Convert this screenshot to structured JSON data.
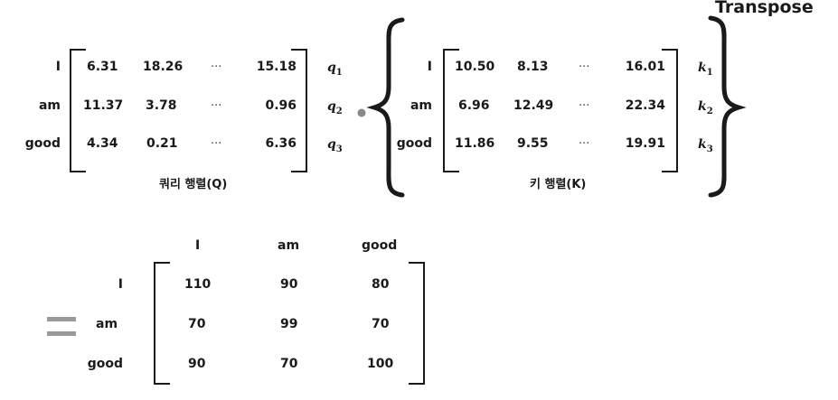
{
  "title": "Transpose",
  "query": {
    "caption": "쿼리 행렬(Q)",
    "rows": [
      {
        "label": "I",
        "cells": [
          "6.31",
          "18.26",
          "···",
          "15.18"
        ],
        "vec": "q",
        "sub": "1"
      },
      {
        "label": "am",
        "cells": [
          "11.37",
          "3.78",
          "···",
          "0.96"
        ],
        "vec": "q",
        "sub": "2"
      },
      {
        "label": "good",
        "cells": [
          "4.34",
          "0.21",
          "···",
          "6.36"
        ],
        "vec": "q",
        "sub": "3"
      }
    ]
  },
  "key": {
    "caption": "키 행렬(K)",
    "rows": [
      {
        "label": "I",
        "cells": [
          "10.50",
          "8.13",
          "···",
          "16.01"
        ],
        "vec": "k",
        "sub": "1"
      },
      {
        "label": "am",
        "cells": [
          "6.96",
          "12.49",
          "···",
          "22.34"
        ],
        "vec": "k",
        "sub": "2"
      },
      {
        "label": "good",
        "cells": [
          "11.86",
          "9.55",
          "···",
          "19.91"
        ],
        "vec": "k",
        "sub": "3"
      }
    ]
  },
  "result": {
    "col_headers": [
      "I",
      "am",
      "good"
    ],
    "row_labels": [
      "I",
      "am",
      "good"
    ],
    "cells": [
      [
        "110",
        "90",
        "80"
      ],
      [
        "70",
        "99",
        "70"
      ],
      [
        "90",
        "70",
        "100"
      ]
    ]
  },
  "colors": {
    "text": "#1a1a1a",
    "dot": "#8a8a8a",
    "equals": "#9a9a9a"
  }
}
